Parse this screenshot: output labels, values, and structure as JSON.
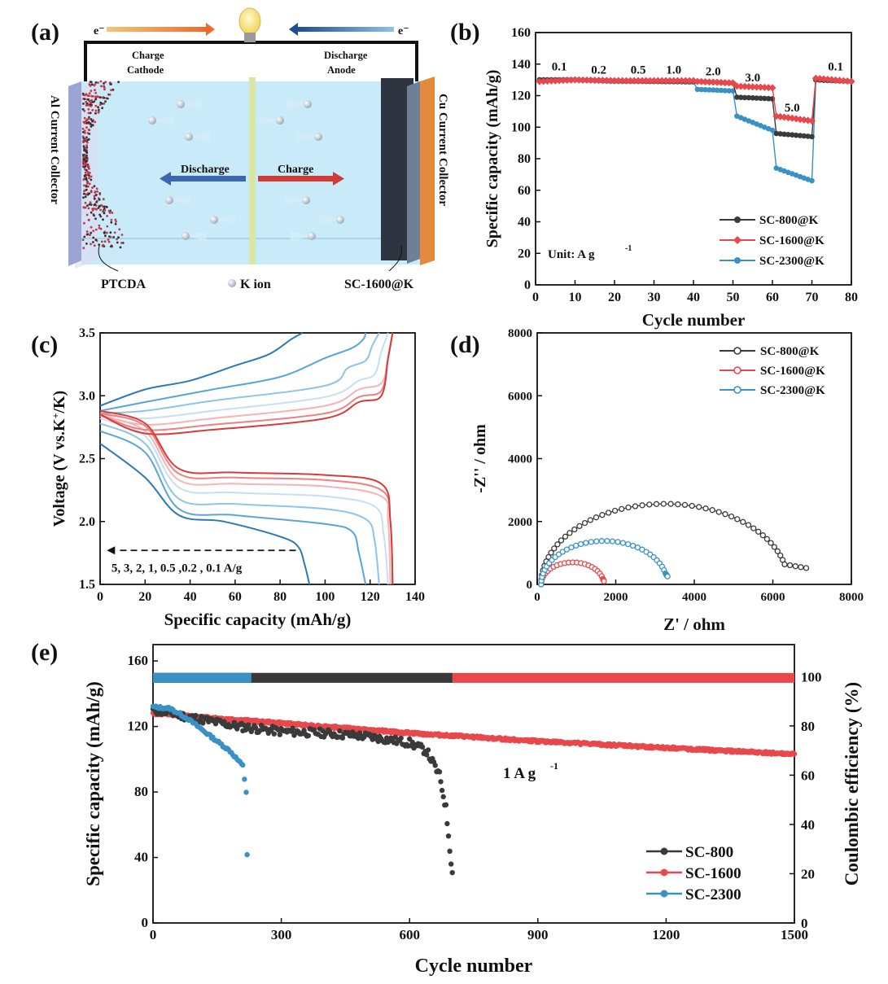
{
  "colors": {
    "black_series": "#3a3a3a",
    "red_series": "#e8484c",
    "blue_series": "#3a91c6",
    "pink_series": "#f07d7d",
    "electrolyte": "#c9ebf9",
    "al_collector": "#9aa5d6",
    "cu_collector": "#e48a3c",
    "anode_dark": "#2f3540",
    "arrow_blue": "#3a68b0",
    "arrow_red": "#d23a34"
  },
  "panel_labels": [
    "(a)",
    "(b)",
    "(c)",
    "(d)",
    "(e)"
  ],
  "schematic": {
    "electron_left": "e⁻",
    "electron_right": "e⁻",
    "top_left_line1": "Charge",
    "top_left_line2": "Cathode",
    "top_right_line1": "Discharge",
    "top_right_line2": "Anode",
    "left_collector": "Al Current Collector",
    "right_collector": "Cu Current Collector",
    "discharge_arrow": "Discharge",
    "charge_arrow": "Charge",
    "bottom_left": "PTCDA",
    "bottom_mid": "K ion",
    "bottom_right": "SC-1600@K"
  },
  "chart_data": [
    {
      "id": "b",
      "type": "line",
      "xlabel": "Cycle number",
      "ylabel": "Specific capacity (mAh/g)",
      "xlim": [
        0,
        80
      ],
      "ylim": [
        0,
        160
      ],
      "xticks": [
        0,
        10,
        20,
        30,
        40,
        50,
        60,
        70,
        80
      ],
      "yticks": [
        0,
        20,
        40,
        60,
        80,
        100,
        120,
        140,
        160
      ],
      "unit_note": "Unit: A g",
      "unit_sup": "-1",
      "rate_labels": [
        {
          "text": "0.1",
          "x": 6,
          "y": 136
        },
        {
          "text": "0.2",
          "x": 16,
          "y": 134
        },
        {
          "text": "0.5",
          "x": 26,
          "y": 134
        },
        {
          "text": "1.0",
          "x": 35,
          "y": 134
        },
        {
          "text": "2.0",
          "x": 45,
          "y": 133
        },
        {
          "text": "3.0",
          "x": 55,
          "y": 129
        },
        {
          "text": "5.0",
          "x": 65,
          "y": 110
        },
        {
          "text": "0.1",
          "x": 76,
          "y": 136
        }
      ],
      "series": [
        {
          "name": "SC-800@K",
          "marker": "circle",
          "segments": [
            [
              1,
              130
            ],
            [
              10,
              130
            ],
            [
              20,
              129.5
            ],
            [
              30,
              129
            ],
            [
              40,
              129
            ],
            [
              41,
              129
            ],
            [
              50,
              128
            ],
            [
              51,
              119
            ],
            [
              60,
              118
            ],
            [
              61,
              96
            ],
            [
              70,
              94
            ],
            [
              71,
              130
            ],
            [
              80,
              129
            ]
          ]
        },
        {
          "name": "SC-1600@K",
          "marker": "diamond",
          "segments": [
            [
              1,
              129
            ],
            [
              10,
              130
            ],
            [
              20,
              129.5
            ],
            [
              30,
              129.5
            ],
            [
              40,
              129.5
            ],
            [
              41,
              129
            ],
            [
              50,
              128
            ],
            [
              51,
              126
            ],
            [
              60,
              125
            ],
            [
              61,
              107
            ],
            [
              70,
              104
            ],
            [
              71,
              131
            ],
            [
              80,
              129
            ]
          ]
        },
        {
          "name": "SC-2300@K",
          "marker": "circle",
          "segments": [
            [
              1,
              130
            ],
            [
              10,
              130
            ],
            [
              20,
              129
            ],
            [
              30,
              129
            ],
            [
              40,
              128.5
            ],
            [
              41,
              124
            ],
            [
              50,
              123
            ],
            [
              51,
              107
            ],
            [
              60,
              98
            ],
            [
              61,
              74
            ],
            [
              70,
              66
            ],
            [
              71,
              130
            ],
            [
              80,
              129
            ]
          ]
        }
      ]
    },
    {
      "id": "c",
      "type": "line",
      "xlabel": "Specific capacity (mAh/g)",
      "ylabel": "Voltage (V vs.K",
      "ylabel_sup": "+",
      "ylabel_end": "/K)",
      "xlim": [
        0,
        140
      ],
      "ylim": [
        1.5,
        3.5
      ],
      "xticks": [
        0,
        20,
        40,
        60,
        80,
        100,
        120,
        140
      ],
      "yticks": [
        1.5,
        2.0,
        2.5,
        3.0,
        3.5
      ],
      "ytick_labels": [
        "1.5",
        "2.0",
        "2.5",
        "3.0",
        "3.5"
      ],
      "annotation": "5, 3, 2, 1, 0.5 ,0.2 , 0.1 A/g",
      "curves": [
        {
          "rate": "0.1",
          "color": "#d93b3b",
          "charge": [
            [
              0,
              2.85
            ],
            [
              20,
              2.7
            ],
            [
              50,
              2.73
            ],
            [
              100,
              2.82
            ],
            [
              115,
              2.95
            ],
            [
              125,
              3.0
            ],
            [
              128,
              3.3
            ],
            [
              130,
              3.5
            ]
          ],
          "discharge": [
            [
              0,
              2.88
            ],
            [
              20,
              2.78
            ],
            [
              35,
              2.42
            ],
            [
              60,
              2.39
            ],
            [
              100,
              2.37
            ],
            [
              125,
              2.3
            ],
            [
              129,
              2.0
            ],
            [
              130,
              1.5
            ]
          ]
        },
        {
          "rate": "0.2",
          "color": "#f08080",
          "charge": [
            [
              0,
              2.85
            ],
            [
              20,
              2.73
            ],
            [
              50,
              2.77
            ],
            [
              100,
              2.86
            ],
            [
              115,
              2.99
            ],
            [
              125,
              3.04
            ],
            [
              128,
              3.3
            ],
            [
              130,
              3.5
            ]
          ],
          "discharge": [
            [
              0,
              2.86
            ],
            [
              20,
              2.76
            ],
            [
              35,
              2.38
            ],
            [
              60,
              2.35
            ],
            [
              100,
              2.33
            ],
            [
              125,
              2.25
            ],
            [
              129,
              2.0
            ],
            [
              130,
              1.5
            ]
          ]
        },
        {
          "rate": "0.5",
          "color": "#f5b4b4",
          "charge": [
            [
              0,
              2.85
            ],
            [
              20,
              2.77
            ],
            [
              50,
              2.82
            ],
            [
              100,
              2.92
            ],
            [
              115,
              3.05
            ],
            [
              125,
              3.1
            ],
            [
              128,
              3.3
            ],
            [
              130,
              3.5
            ]
          ],
          "discharge": [
            [
              0,
              2.84
            ],
            [
              20,
              2.72
            ],
            [
              35,
              2.33
            ],
            [
              60,
              2.3
            ],
            [
              100,
              2.28
            ],
            [
              125,
              2.2
            ],
            [
              128,
              2.0
            ],
            [
              129,
              1.5
            ]
          ]
        },
        {
          "rate": "1",
          "color": "#c6e0f2",
          "charge": [
            [
              0,
              2.85
            ],
            [
              20,
              2.82
            ],
            [
              50,
              2.88
            ],
            [
              100,
              2.99
            ],
            [
              115,
              3.12
            ],
            [
              122,
              3.17
            ],
            [
              125,
              3.35
            ],
            [
              128,
              3.5
            ]
          ],
          "discharge": [
            [
              0,
              2.82
            ],
            [
              20,
              2.68
            ],
            [
              35,
              2.27
            ],
            [
              60,
              2.23
            ],
            [
              100,
              2.2
            ],
            [
              122,
              2.12
            ],
            [
              126,
              1.9
            ],
            [
              128,
              1.5
            ]
          ]
        },
        {
          "rate": "2",
          "color": "#8ec4e8",
          "charge": [
            [
              0,
              2.86
            ],
            [
              20,
              2.88
            ],
            [
              50,
              2.96
            ],
            [
              100,
              3.08
            ],
            [
              110,
              3.22
            ],
            [
              118,
              3.28
            ],
            [
              121,
              3.4
            ],
            [
              124,
              3.5
            ]
          ],
          "discharge": [
            [
              0,
              2.78
            ],
            [
              20,
              2.62
            ],
            [
              35,
              2.18
            ],
            [
              60,
              2.14
            ],
            [
              100,
              2.1
            ],
            [
              118,
              2.02
            ],
            [
              122,
              1.85
            ],
            [
              124,
              1.5
            ]
          ]
        },
        {
          "rate": "3",
          "color": "#5aa5d8",
          "charge": [
            [
              0,
              2.88
            ],
            [
              20,
              2.95
            ],
            [
              50,
              3.05
            ],
            [
              80,
              3.15
            ],
            [
              100,
              3.3
            ],
            [
              112,
              3.38
            ],
            [
              117,
              3.45
            ],
            [
              118,
              3.5
            ]
          ],
          "discharge": [
            [
              0,
              2.72
            ],
            [
              20,
              2.55
            ],
            [
              35,
              2.1
            ],
            [
              60,
              2.05
            ],
            [
              100,
              1.98
            ],
            [
              112,
              1.92
            ],
            [
              115,
              1.75
            ],
            [
              118,
              1.5
            ]
          ]
        },
        {
          "rate": "5",
          "color": "#2b79b8",
          "charge": [
            [
              0,
              2.92
            ],
            [
              20,
              3.05
            ],
            [
              40,
              3.12
            ],
            [
              60,
              3.24
            ],
            [
              75,
              3.33
            ],
            [
              85,
              3.45
            ],
            [
              90,
              3.5
            ]
          ],
          "discharge": [
            [
              0,
              2.62
            ],
            [
              20,
              2.35
            ],
            [
              35,
              2.05
            ],
            [
              55,
              2.0
            ],
            [
              80,
              1.88
            ],
            [
              88,
              1.8
            ],
            [
              91,
              1.65
            ],
            [
              93,
              1.5
            ]
          ]
        }
      ]
    },
    {
      "id": "d",
      "type": "scatter",
      "xlabel": "Z' / ohm",
      "ylabel": "-Z'' / ohm",
      "xlim": [
        0,
        8000
      ],
      "ylim": [
        0,
        8000
      ],
      "xticks": [
        0,
        2000,
        4000,
        6000,
        8000
      ],
      "yticks": [
        0,
        2000,
        4000,
        6000,
        8000
      ],
      "series": [
        {
          "name": "SC-800@K",
          "arc_start": 100,
          "arc_end": 6400,
          "peak": 2560,
          "tail_end_x": 6850,
          "tail_end_y": 520,
          "n": 50
        },
        {
          "name": "SC-1600@K",
          "arc_start": 100,
          "arc_end": 1700,
          "peak": 700,
          "tail_end_x": 1700,
          "tail_end_y": 100,
          "n": 22
        },
        {
          "name": "SC-2300@K",
          "arc_start": 100,
          "arc_end": 3320,
          "peak": 1380,
          "tail_end_x": 3320,
          "tail_end_y": 250,
          "n": 34
        }
      ]
    },
    {
      "id": "e",
      "type": "scatter",
      "xlabel": "Cycle number",
      "ylabel": "Specific capacity (mAh/g)",
      "ylabel_right": "Coulombic efficiency (%)",
      "xlim": [
        0,
        1500
      ],
      "ylim": [
        0,
        170
      ],
      "ylim_right": [
        0,
        113
      ],
      "xticks": [
        0,
        300,
        600,
        900,
        1200,
        1500
      ],
      "yticks": [
        0,
        40,
        80,
        120,
        160
      ],
      "yticks_right": [
        0,
        20,
        40,
        60,
        80,
        100
      ],
      "annotation": "1 A g",
      "annotation_sup": "-1",
      "series": [
        {
          "name": "SC-800",
          "capacity": [
            [
              0,
              130
            ],
            [
              100,
              125
            ],
            [
              200,
              120
            ],
            [
              300,
              117
            ],
            [
              400,
              116
            ],
            [
              500,
              114
            ],
            [
              600,
              110
            ],
            [
              640,
              105
            ],
            [
              670,
              90
            ],
            [
              685,
              70
            ],
            [
              700,
              30
            ]
          ],
          "efficiency_end": 700
        },
        {
          "name": "SC-1600",
          "capacity": [
            [
              0,
              128
            ],
            [
              300,
              122
            ],
            [
              600,
              116
            ],
            [
              900,
              111
            ],
            [
              1200,
              107
            ],
            [
              1500,
              103
            ]
          ],
          "efficiency_end": 1500
        },
        {
          "name": "SC-2300",
          "capacity": [
            [
              0,
              132
            ],
            [
              40,
              131
            ],
            [
              80,
              125
            ],
            [
              130,
              115
            ],
            [
              180,
              105
            ],
            [
              210,
              96
            ],
            [
              218,
              80
            ],
            [
              220,
              42
            ]
          ],
          "efficiency_end": 230
        }
      ]
    }
  ]
}
